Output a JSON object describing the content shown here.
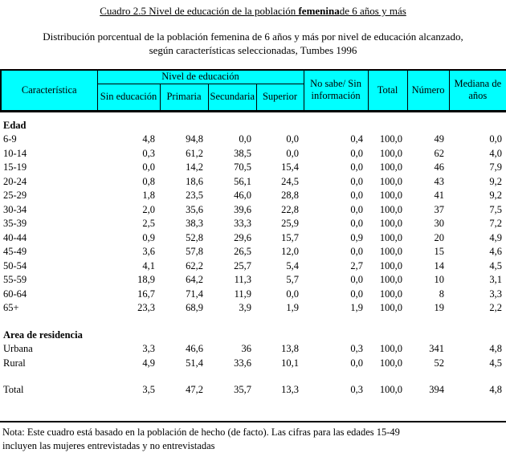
{
  "document": {
    "title": {
      "prefix": "Cuadro 2.5  Nivel de educación de la población ",
      "emphasis": "femenina",
      "suffix": "de 6 años y más"
    },
    "subtitle_line1": "Distribución porcentual de la población femenina de 6 años y más por nivel de educación alcanzado,",
    "subtitle_line2": "según características seleccionadas, Tumbes 1996",
    "note_line1": "Nota: Este cuadro está basado en la población de hecho (de facto). Las cifras para las edades 15-49",
    "note_line2": "incluyen las mujeres entrevistadas y no entrevistadas"
  },
  "table": {
    "header_bg": "#00FFFF",
    "header": {
      "characteristic": "Característica",
      "group": "Nivel de educación",
      "subcolumns": [
        "Sin educación",
        "Primaria",
        "Secundaria",
        "Superior"
      ],
      "no_sabe": "No sabe/ Sin información",
      "total": "Total",
      "numero": "Número",
      "mediana": "Mediana de años"
    },
    "sections": [
      {
        "label": "Edad",
        "rows": [
          [
            "6-9",
            "4,8",
            "94,8",
            "0,0",
            "0,0",
            "0,4",
            "100,0",
            "49",
            "0,0"
          ],
          [
            "10-14",
            "0,3",
            "61,2",
            "38,5",
            "0,0",
            "0,0",
            "100,0",
            "62",
            "4,0"
          ],
          [
            "15-19",
            "0,0",
            "14,2",
            "70,5",
            "15,4",
            "0,0",
            "100,0",
            "46",
            "7,9"
          ],
          [
            "20-24",
            "0,8",
            "18,6",
            "56,1",
            "24,5",
            "0,0",
            "100,0",
            "43",
            "9,2"
          ],
          [
            "25-29",
            "1,8",
            "23,5",
            "46,0",
            "28,8",
            "0,0",
            "100,0",
            "41",
            "9,2"
          ],
          [
            "30-34",
            "2,0",
            "35,6",
            "39,6",
            "22,8",
            "0,0",
            "100,0",
            "37",
            "7,5"
          ],
          [
            "35-39",
            "2,5",
            "38,3",
            "33,3",
            "25,9",
            "0,0",
            "100,0",
            "30",
            "7,2"
          ],
          [
            "40-44",
            "0,9",
            "52,8",
            "29,6",
            "15,7",
            "0,9",
            "100,0",
            "20",
            "4,9"
          ],
          [
            "45-49",
            "3,6",
            "57,8",
            "26,5",
            "12,0",
            "0,0",
            "100,0",
            "15",
            "4,6"
          ],
          [
            "50-54",
            "4,1",
            "62,2",
            "25,7",
            "5,4",
            "2,7",
            "100,0",
            "14",
            "4,5"
          ],
          [
            "55-59",
            "18,9",
            "64,2",
            "11,3",
            "5,7",
            "0,0",
            "100,0",
            "10",
            "3,1"
          ],
          [
            "60-64",
            "16,7",
            "71,4",
            "11,9",
            "0,0",
            "0,0",
            "100,0",
            "8",
            "3,3"
          ],
          [
            "65+",
            "23,3",
            "68,9",
            "3,9",
            "1,9",
            "1,9",
            "100,0",
            "19",
            "2,2"
          ]
        ]
      },
      {
        "label": "Area de residencia",
        "rows": [
          [
            "Urbana",
            "3,3",
            "46,6",
            "36",
            "13,8",
            "0,3",
            "100,0",
            "341",
            "4,8"
          ],
          [
            "Rural",
            "4,9",
            "51,4",
            "33,6",
            "10,1",
            "0,0",
            "100,0",
            "52",
            "4,5"
          ]
        ]
      },
      {
        "label": "",
        "rows": [
          [
            "Total",
            "3,5",
            "47,2",
            "35,7",
            "13,3",
            "0,3",
            "100,0",
            "394",
            "4,8"
          ]
        ]
      }
    ]
  }
}
